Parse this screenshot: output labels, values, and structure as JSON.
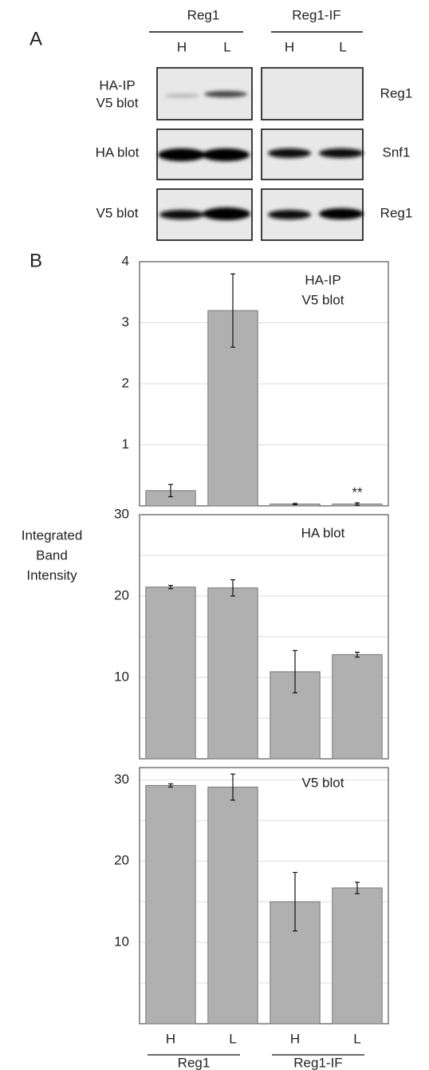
{
  "panel_a": {
    "label": "A",
    "groups": [
      "Reg1",
      "Reg1-IF"
    ],
    "lanes": [
      "H",
      "L",
      "H",
      "L"
    ],
    "rows": [
      {
        "left": [
          "HA-IP",
          "V5 blot"
        ],
        "right": "Reg1"
      },
      {
        "left": [
          "HA blot"
        ],
        "right": "Snf1"
      },
      {
        "left": [
          "V5 blot"
        ],
        "right": "Reg1"
      }
    ]
  },
  "panel_b": {
    "label": "B",
    "y_label": [
      "Integrated",
      "Band",
      "Intensity"
    ]
  },
  "chart_data": [
    {
      "type": "bar",
      "title": [
        "HA-IP",
        "V5 blot"
      ],
      "values": [
        0.25,
        3.2,
        0.03,
        0.03
      ],
      "errors": [
        0.1,
        0.6,
        0.01,
        0.02
      ],
      "bar_notes": [
        null,
        null,
        null,
        "**"
      ],
      "color": "#b0b0b0",
      "ylim": [
        0,
        4
      ],
      "yticks": [
        1,
        2,
        3,
        4
      ],
      "grid": true
    },
    {
      "type": "bar",
      "title": [
        "HA blot"
      ],
      "values": [
        21.1,
        21.0,
        10.7,
        12.8
      ],
      "errors": [
        0.2,
        1.0,
        2.6,
        0.3
      ],
      "color": "#b0b0b0",
      "ylim": [
        0,
        30
      ],
      "yticks": [
        10,
        20,
        30
      ],
      "minor_gridlines": [
        5,
        15,
        25
      ],
      "grid": true
    },
    {
      "type": "bar",
      "title": [
        "V5 blot"
      ],
      "categories": [
        "H",
        "L",
        "H",
        "L"
      ],
      "groups": [
        "Reg1",
        "Reg1-IF"
      ],
      "values": [
        29.3,
        29.1,
        15.0,
        16.7
      ],
      "errors": [
        0.2,
        1.6,
        3.6,
        0.7
      ],
      "color": "#b0b0b0",
      "ylim": [
        0,
        31.5
      ],
      "yticks": [
        10,
        20,
        30
      ],
      "minor_gridlines": [
        5,
        15,
        25
      ],
      "grid": true
    }
  ]
}
